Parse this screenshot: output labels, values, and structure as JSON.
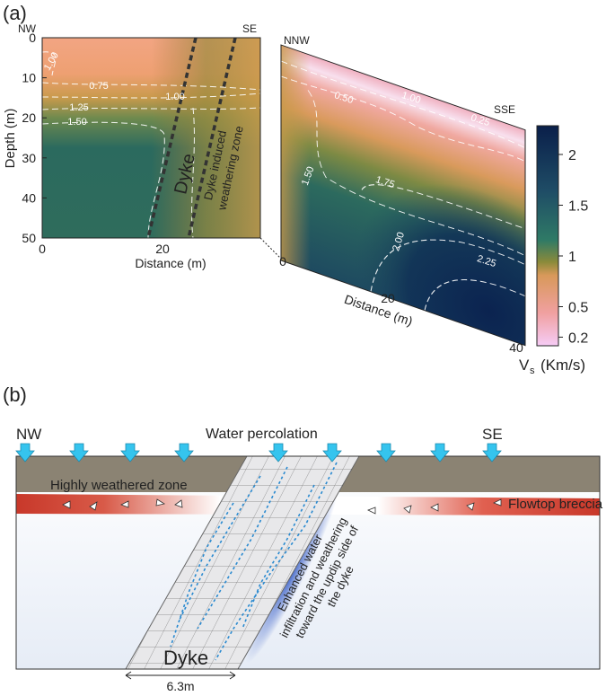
{
  "panel_a": {
    "label": "(a)",
    "left_section": {
      "corners": [
        "NW",
        "SE"
      ],
      "y_label": "Depth (m)",
      "y_ticks": [
        0,
        10,
        20,
        30,
        40,
        50
      ],
      "x_label": "Distance (m)",
      "x_ticks": [
        0,
        20
      ],
      "contours": [
        "1.00",
        "0.75",
        "1.00",
        "1.25",
        "1.50"
      ],
      "dyke": "Dyke",
      "zone": [
        "Dyke induced",
        "weathering zone"
      ]
    },
    "right_section": {
      "corners": [
        "NNW",
        "SSE"
      ],
      "x_label": "Distance (m)",
      "x_ticks": [
        0,
        20,
        40
      ],
      "contours": [
        "0.50",
        "1.00",
        "0.25",
        "1.50",
        "1.75",
        "2.00",
        "2.25"
      ]
    },
    "colorbar": {
      "label": "V",
      "label_sub": "s",
      "label_unit": "(Km/s)",
      "ticks": [
        2,
        1.5,
        1,
        0.5,
        0.2
      ]
    }
  },
  "panel_b": {
    "label": "(b)",
    "corners": [
      "NW",
      "SE"
    ],
    "water": "Water percolation",
    "zones": [
      "Highly weathered zone",
      "Flowtop breccia"
    ],
    "annotation": [
      "Enhanced water",
      "infiltration and weathering",
      "toward the updip side of",
      "the dyke"
    ],
    "dyke": "Dyke",
    "width": "6.3m"
  }
}
